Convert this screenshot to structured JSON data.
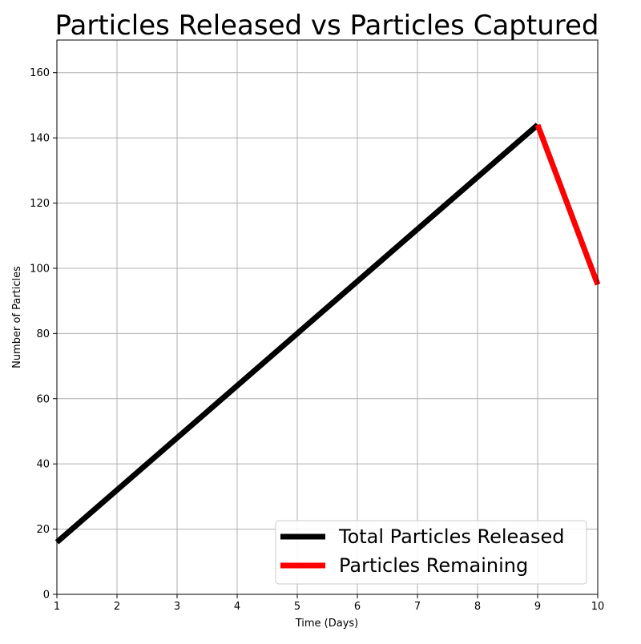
{
  "chart_data": {
    "type": "line",
    "title": "Particles Released vs Particles Captured",
    "xlabel": "Time (Days)",
    "ylabel": "Number of Particles",
    "xlim": [
      1,
      10
    ],
    "ylim": [
      0,
      170
    ],
    "x_ticks": [
      1,
      2,
      3,
      4,
      5,
      6,
      7,
      8,
      9,
      10
    ],
    "y_ticks": [
      0,
      20,
      40,
      60,
      80,
      100,
      120,
      140,
      160
    ],
    "grid": true,
    "legend_position": "lower-right",
    "series": [
      {
        "name": "Total Particles Released",
        "color": "#000000",
        "x": [
          1,
          2,
          3,
          4,
          5,
          6,
          7,
          8,
          9
        ],
        "y": [
          16,
          32,
          48,
          64,
          80,
          96,
          112,
          128,
          144
        ]
      },
      {
        "name": "Particles Remaining",
        "color": "#ff0000",
        "x": [
          9,
          10
        ],
        "y": [
          144,
          95
        ]
      }
    ]
  }
}
